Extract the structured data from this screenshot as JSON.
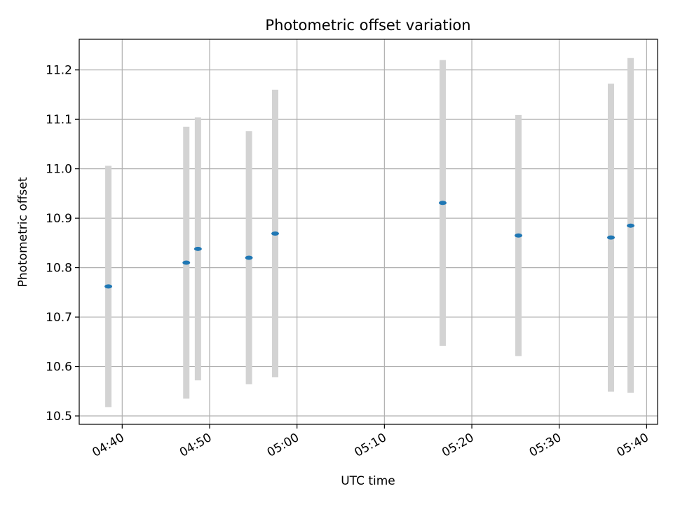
{
  "chart_data": {
    "type": "scatter",
    "title": "Photometric offset variation",
    "xlabel": "UTC time",
    "ylabel": "Photometric offset",
    "x_ticks": [
      "04:40",
      "04:50",
      "05:00",
      "05:10",
      "05:20",
      "05:30",
      "05:40"
    ],
    "y_ticks": [
      "10.5",
      "10.6",
      "10.7",
      "10.8",
      "10.9",
      "11.0",
      "11.1",
      "11.2"
    ],
    "xlim": [
      "04:35:05",
      "05:41:15"
    ],
    "ylim": [
      10.483,
      11.262
    ],
    "grid": true,
    "colors": {
      "point": "#1f77b4",
      "errorbar": "#d3d3d3",
      "grid": "#b0b0b0"
    },
    "points": [
      {
        "x": "04:38:25",
        "y": 10.762,
        "ylow": 10.518,
        "yhigh": 11.006
      },
      {
        "x": "04:47:20",
        "y": 10.81,
        "ylow": 10.535,
        "yhigh": 11.085
      },
      {
        "x": "04:48:40",
        "y": 10.838,
        "ylow": 10.572,
        "yhigh": 11.104
      },
      {
        "x": "04:54:30",
        "y": 10.82,
        "ylow": 10.564,
        "yhigh": 11.076
      },
      {
        "x": "04:57:30",
        "y": 10.869,
        "ylow": 10.578,
        "yhigh": 11.16
      },
      {
        "x": "05:16:40",
        "y": 10.931,
        "ylow": 10.642,
        "yhigh": 11.22
      },
      {
        "x": "05:25:20",
        "y": 10.865,
        "ylow": 10.621,
        "yhigh": 11.109
      },
      {
        "x": "05:35:55",
        "y": 10.861,
        "ylow": 10.549,
        "yhigh": 11.172
      },
      {
        "x": "05:38:10",
        "y": 10.885,
        "ylow": 10.547,
        "yhigh": 11.224
      }
    ]
  }
}
